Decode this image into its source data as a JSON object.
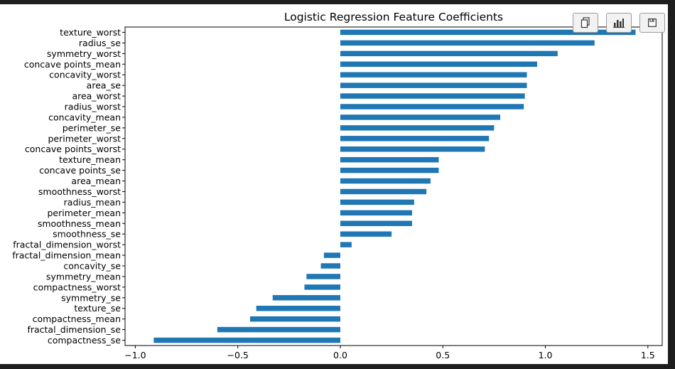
{
  "toolbar": {
    "buttons": [
      {
        "name": "copy-icon"
      },
      {
        "name": "chart-icon"
      },
      {
        "name": "save-icon"
      }
    ]
  },
  "chart_data": {
    "type": "bar",
    "orientation": "horizontal",
    "title": "Logistic Regression Feature Coefficients",
    "xlabel": "",
    "ylabel": "",
    "xlim": [
      -1.05,
      1.57
    ],
    "xticks": [
      -1.0,
      -0.5,
      0.0,
      0.5,
      1.0,
      1.5
    ],
    "xtick_labels": [
      "−1.0",
      "−0.5",
      "0.0",
      "0.5",
      "1.0",
      "1.5"
    ],
    "bar_color": "#1f77b4",
    "grid": false,
    "legend": "none",
    "categories": [
      "texture_worst",
      "radius_se",
      "symmetry_worst",
      "concave points_mean",
      "concavity_worst",
      "area_se",
      "area_worst",
      "radius_worst",
      "concavity_mean",
      "perimeter_se",
      "perimeter_worst",
      "concave points_worst",
      "texture_mean",
      "concave points_se",
      "area_mean",
      "smoothness_worst",
      "radius_mean",
      "perimeter_mean",
      "smoothness_mean",
      "smoothness_se",
      "fractal_dimension_worst",
      "fractal_dimension_mean",
      "concavity_se",
      "symmetry_mean",
      "compactness_worst",
      "symmetry_se",
      "texture_se",
      "compactness_mean",
      "fractal_dimension_se",
      "compactness_se"
    ],
    "values": [
      1.44,
      1.24,
      1.06,
      0.96,
      0.91,
      0.91,
      0.9,
      0.895,
      0.78,
      0.75,
      0.725,
      0.705,
      0.48,
      0.48,
      0.44,
      0.42,
      0.36,
      0.35,
      0.35,
      0.25,
      0.055,
      -0.08,
      -0.095,
      -0.165,
      -0.175,
      -0.33,
      -0.41,
      -0.44,
      -0.6,
      -0.91
    ]
  }
}
